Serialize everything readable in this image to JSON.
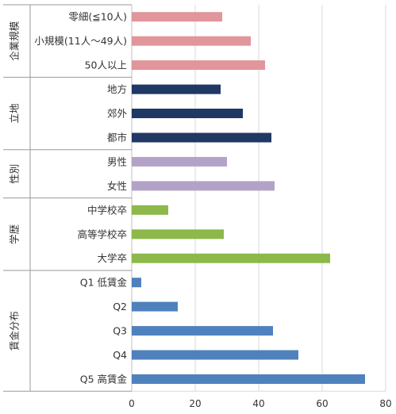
{
  "chart_data": {
    "type": "bar",
    "orientation": "horizontal",
    "title": "",
    "xlabel": "",
    "ylabel": "",
    "xlim": [
      0,
      80
    ],
    "xticks": [
      0,
      20,
      40,
      60,
      80
    ],
    "grid": true,
    "legend": "none",
    "groups": [
      {
        "name": "企業規模",
        "color": "#e0969a",
        "categories": [
          "零細(≦10人)",
          "小規模(11人～49人)",
          "50人以上"
        ],
        "values": [
          28.5,
          37.5,
          42
        ]
      },
      {
        "name": "立地",
        "color": "#1f3864",
        "categories": [
          "地方",
          "郊外",
          "都市"
        ],
        "values": [
          28,
          35,
          44
        ]
      },
      {
        "name": "性別",
        "color": "#b3a2c7",
        "categories": [
          "男性",
          "女性"
        ],
        "values": [
          30,
          45
        ]
      },
      {
        "name": "学歴",
        "color": "#8db84a",
        "categories": [
          "中学校卒",
          "高等学校卒",
          "大学卒"
        ],
        "values": [
          11.5,
          29,
          62.5
        ]
      },
      {
        "name": "賃金分布",
        "color": "#4f81bd",
        "categories": [
          "Q1 低賃金",
          "Q2",
          "Q3",
          "Q4",
          "Q5 高賃金"
        ],
        "values": [
          3,
          14.5,
          44.5,
          52.5,
          73.5
        ]
      }
    ]
  }
}
